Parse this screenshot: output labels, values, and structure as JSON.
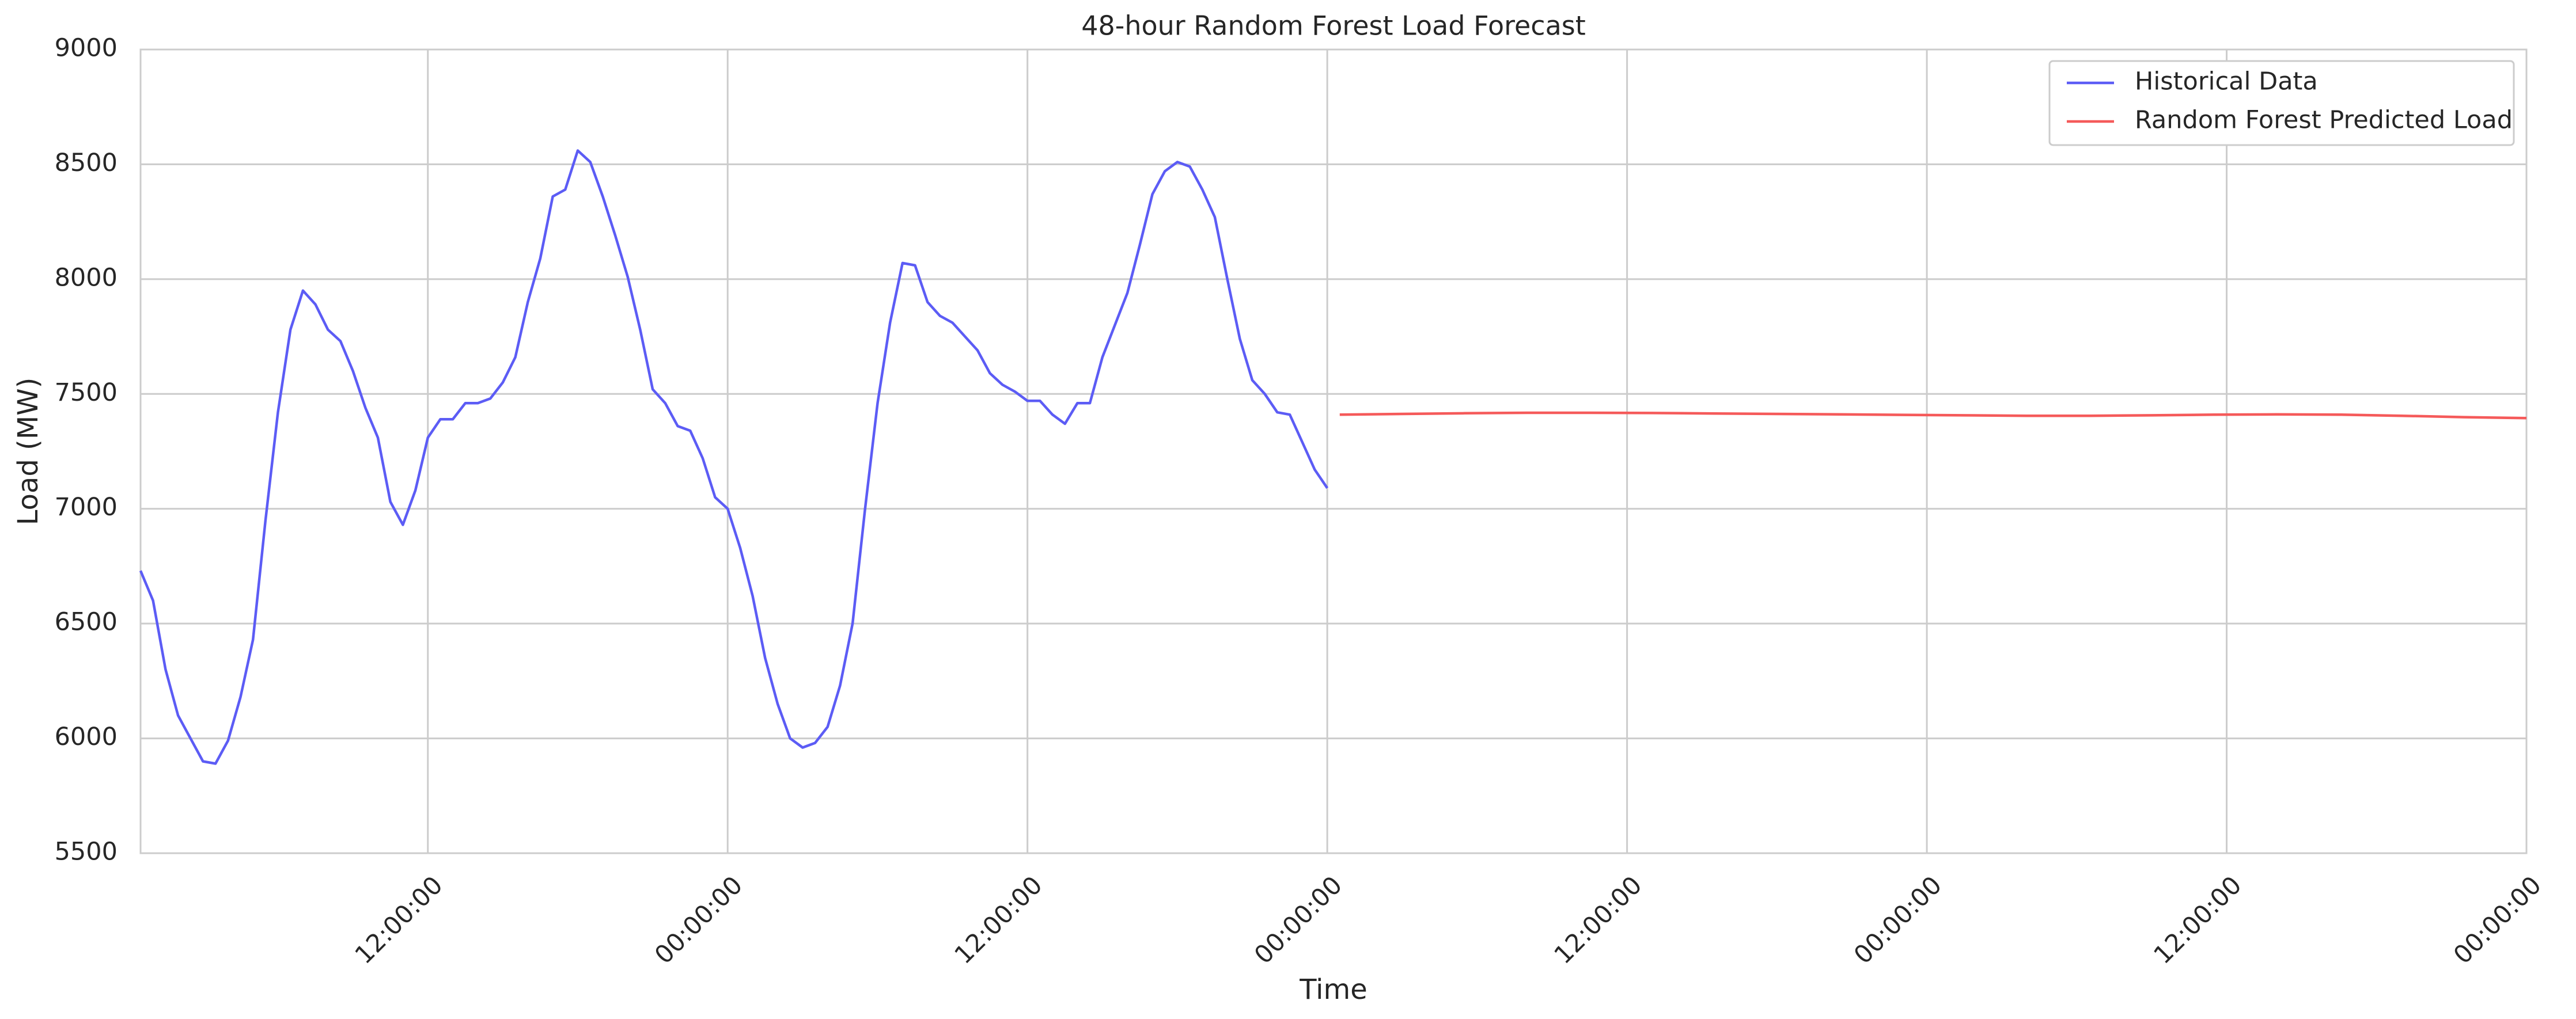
{
  "chart_data": {
    "type": "line",
    "title": "48-hour Random Forest Load Forecast",
    "xlabel": "Time",
    "ylabel": "Load (MW)",
    "xlim": [
      0.5,
      96
    ],
    "ylim": [
      5500,
      9000
    ],
    "xticks": [
      {
        "value": 12,
        "label": "12:00:00"
      },
      {
        "value": 24,
        "label": "00:00:00"
      },
      {
        "value": 36,
        "label": "12:00:00"
      },
      {
        "value": 48,
        "label": "00:00:00"
      },
      {
        "value": 60,
        "label": "12:00:00"
      },
      {
        "value": 72,
        "label": "00:00:00"
      },
      {
        "value": 84,
        "label": "12:00:00"
      },
      {
        "value": 96,
        "label": "00:00:00"
      }
    ],
    "yticks": [
      5500,
      6000,
      6500,
      7000,
      7500,
      8000,
      8500,
      9000
    ],
    "grid": true,
    "legend": "upper right",
    "series": [
      {
        "name": "Historical Data",
        "color": "#5c5cf5",
        "x": [
          0.5,
          1,
          1.5,
          2,
          2.5,
          3,
          3.5,
          4,
          4.5,
          5,
          5.5,
          6,
          6.5,
          7,
          7.5,
          8,
          8.5,
          9,
          9.5,
          10,
          10.5,
          11,
          11.5,
          12,
          12.5,
          13,
          13.5,
          14,
          14.5,
          15,
          15.5,
          16,
          16.5,
          17,
          17.5,
          18,
          18.5,
          19,
          19.5,
          20,
          20.5,
          21,
          21.5,
          22,
          22.5,
          23,
          23.5,
          24,
          24.5,
          25,
          25.5,
          26,
          26.5,
          27,
          27.5,
          28,
          28.5,
          29,
          29.5,
          30,
          30.5,
          31,
          31.5,
          32,
          32.5,
          33,
          33.5,
          34,
          34.5,
          35,
          35.5,
          36,
          36.5,
          37,
          37.5,
          38,
          38.5,
          39,
          39.5,
          40,
          40.5,
          41,
          41.5,
          42,
          42.5,
          43,
          43.5,
          44,
          44.5,
          45,
          45.5,
          46,
          46.5,
          47,
          47.5,
          48
        ],
        "values": [
          6730,
          6600,
          6300,
          6100,
          6000,
          5900,
          5890,
          5990,
          6180,
          6430,
          6950,
          7420,
          7780,
          7950,
          7890,
          7780,
          7730,
          7600,
          7440,
          7310,
          7030,
          6930,
          7080,
          7310,
          7390,
          7390,
          7460,
          7460,
          7480,
          7550,
          7660,
          7900,
          8090,
          8360,
          8390,
          8560,
          8510,
          8360,
          8190,
          8010,
          7780,
          7520,
          7460,
          7360,
          7340,
          7220,
          7050,
          7000,
          6830,
          6620,
          6350,
          6150,
          6000,
          5960,
          5980,
          6050,
          6230,
          6500,
          7000,
          7460,
          7810,
          8070,
          8060,
          7900,
          7840,
          7810,
          7750,
          7690,
          7590,
          7540,
          7510,
          7470,
          7470,
          7410,
          7370,
          7460,
          7460,
          7660,
          7800,
          7940,
          8150,
          8370,
          8470,
          8510,
          8490,
          8390,
          8270,
          8000,
          7740,
          7560,
          7500,
          7420,
          7410,
          7290,
          7170,
          7090
        ]
      },
      {
        "name": "Random Forest Predicted Load",
        "color": "#f55a5a",
        "x": [
          48.5,
          51,
          53.5,
          56,
          58.5,
          61,
          63.5,
          66,
          68.5,
          71,
          73.5,
          76,
          78.5,
          81,
          83.5,
          86,
          88.5,
          91,
          93.5,
          96
        ],
        "values": [
          7410,
          7413,
          7416,
          7418,
          7418,
          7417,
          7415,
          7413,
          7411,
          7409,
          7407,
          7405,
          7405,
          7407,
          7410,
          7411,
          7410,
          7405,
          7399,
          7395
        ]
      }
    ]
  }
}
